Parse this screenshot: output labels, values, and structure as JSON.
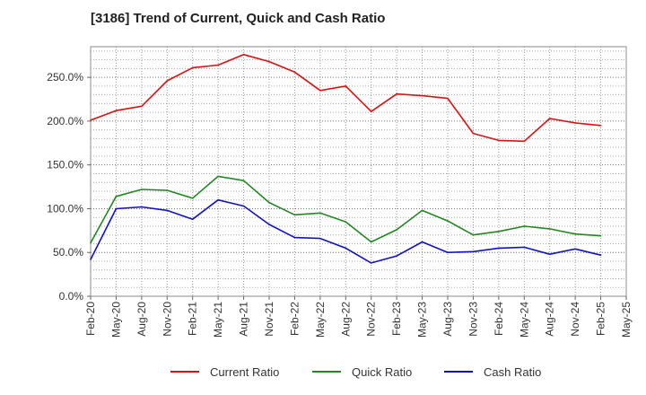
{
  "chart_data": {
    "type": "line",
    "title": "[3186]  Trend of Current, Quick and Cash Ratio",
    "xlabel": "",
    "ylabel": "",
    "ylim": [
      0,
      285
    ],
    "grid": true,
    "legend_position": "bottom",
    "yticks": [
      0,
      50,
      100,
      150,
      200,
      250
    ],
    "ytick_labels": [
      "0.0%",
      "50.0%",
      "100.0%",
      "150.0%",
      "200.0%",
      "250.0%"
    ],
    "xtick_labels": [
      "Feb-20",
      "May-20",
      "Aug-20",
      "Nov-20",
      "Feb-21",
      "May-21",
      "Aug-21",
      "Nov-21",
      "Feb-22",
      "May-22",
      "Aug-22",
      "Nov-22",
      "Feb-23",
      "May-23",
      "Aug-23",
      "Nov-23",
      "Feb-24",
      "May-24",
      "Aug-24",
      "Nov-24",
      "Feb-25",
      "May-25"
    ],
    "categories": [
      "Feb-20",
      "May-20",
      "Aug-20",
      "Nov-20",
      "Feb-21",
      "May-21",
      "Aug-21",
      "Nov-21",
      "Feb-22",
      "May-22",
      "Aug-22",
      "Nov-22",
      "Feb-23",
      "May-23",
      "Aug-23",
      "Nov-23",
      "Feb-24",
      "May-24",
      "Aug-24",
      "Nov-24",
      "Feb-25"
    ],
    "series": [
      {
        "name": "Current Ratio",
        "color": "#dd1111",
        "values": [
          201,
          212,
          217,
          246,
          261,
          264,
          276,
          268,
          256,
          235,
          240,
          211,
          231,
          229,
          226,
          186,
          178,
          177,
          203,
          198,
          195
        ]
      },
      {
        "name": "Quick Ratio",
        "color": "#228822",
        "values": [
          61,
          114,
          122,
          121,
          112,
          137,
          132,
          107,
          93,
          95,
          85,
          62,
          76,
          98,
          86,
          70,
          74,
          80,
          77,
          71,
          69
        ]
      },
      {
        "name": "Cash Ratio",
        "color": "#1111cc",
        "values": [
          42,
          100,
          102,
          98,
          88,
          110,
          103,
          82,
          67,
          66,
          55,
          38,
          46,
          62,
          50,
          51,
          55,
          56,
          48,
          54,
          47
        ]
      }
    ]
  }
}
